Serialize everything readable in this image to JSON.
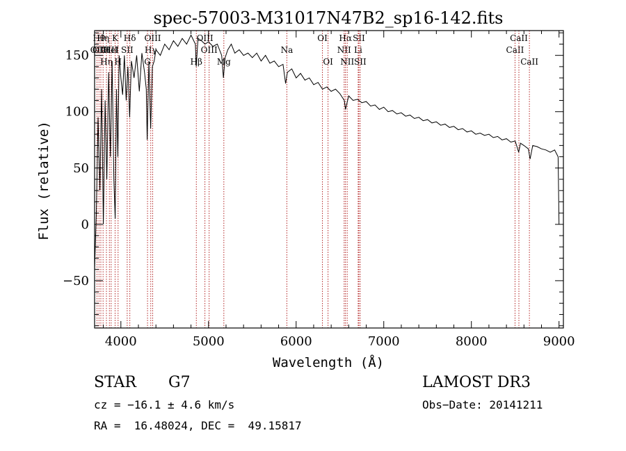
{
  "chart_data": {
    "type": "line",
    "title": "spec-57003-M31017N47B2_sp16-142.fits",
    "xlabel": "Wavelength (Å)",
    "ylabel": "Flux (relative)",
    "xlim": [
      3700,
      9050
    ],
    "ylim": [
      -92,
      172
    ],
    "x_ticks": [
      4000,
      5000,
      6000,
      7000,
      8000,
      9000
    ],
    "y_ticks": [
      -50,
      0,
      50,
      100,
      150
    ],
    "grid": false,
    "series": [
      {
        "name": "flux",
        "color": "#000000",
        "points": [
          [
            3700,
            -40
          ],
          [
            3720,
            10
          ],
          [
            3740,
            95
          ],
          [
            3760,
            30
          ],
          [
            3780,
            120
          ],
          [
            3800,
            0
          ],
          [
            3820,
            110
          ],
          [
            3840,
            40
          ],
          [
            3860,
            135
          ],
          [
            3880,
            60
          ],
          [
            3900,
            145
          ],
          [
            3920,
            40
          ],
          [
            3935,
            5
          ],
          [
            3950,
            120
          ],
          [
            3965,
            60
          ],
          [
            3980,
            150
          ],
          [
            4000,
            130
          ],
          [
            4020,
            115
          ],
          [
            4040,
            150
          ],
          [
            4060,
            110
          ],
          [
            4080,
            140
          ],
          [
            4100,
            95
          ],
          [
            4120,
            145
          ],
          [
            4150,
            130
          ],
          [
            4180,
            150
          ],
          [
            4210,
            118
          ],
          [
            4240,
            152
          ],
          [
            4270,
            135
          ],
          [
            4290,
            120
          ],
          [
            4300,
            75
          ],
          [
            4320,
            145
          ],
          [
            4340,
            85
          ],
          [
            4360,
            140
          ],
          [
            4380,
            145
          ],
          [
            4400,
            155
          ],
          [
            4450,
            150
          ],
          [
            4500,
            160
          ],
          [
            4550,
            155
          ],
          [
            4600,
            163
          ],
          [
            4650,
            158
          ],
          [
            4700,
            165
          ],
          [
            4750,
            160
          ],
          [
            4800,
            168
          ],
          [
            4850,
            160
          ],
          [
            4860,
            140
          ],
          [
            4880,
            165
          ],
          [
            4920,
            163
          ],
          [
            4960,
            160
          ],
          [
            5000,
            162
          ],
          [
            5050,
            158
          ],
          [
            5100,
            160
          ],
          [
            5150,
            150
          ],
          [
            5170,
            130
          ],
          [
            5190,
            148
          ],
          [
            5220,
            155
          ],
          [
            5260,
            160
          ],
          [
            5300,
            152
          ],
          [
            5350,
            155
          ],
          [
            5400,
            150
          ],
          [
            5450,
            152
          ],
          [
            5500,
            148
          ],
          [
            5550,
            152
          ],
          [
            5600,
            145
          ],
          [
            5650,
            150
          ],
          [
            5700,
            143
          ],
          [
            5750,
            145
          ],
          [
            5800,
            140
          ],
          [
            5850,
            142
          ],
          [
            5880,
            125
          ],
          [
            5900,
            135
          ],
          [
            5950,
            138
          ],
          [
            6000,
            130
          ],
          [
            6050,
            134
          ],
          [
            6100,
            128
          ],
          [
            6150,
            130
          ],
          [
            6200,
            124
          ],
          [
            6250,
            126
          ],
          [
            6300,
            120
          ],
          [
            6350,
            122
          ],
          [
            6400,
            118
          ],
          [
            6450,
            120
          ],
          [
            6500,
            116
          ],
          [
            6550,
            110
          ],
          [
            6563,
            102
          ],
          [
            6600,
            114
          ],
          [
            6650,
            110
          ],
          [
            6700,
            111
          ],
          [
            6750,
            108
          ],
          [
            6800,
            109
          ],
          [
            6850,
            105
          ],
          [
            6900,
            106
          ],
          [
            6950,
            102
          ],
          [
            7000,
            104
          ],
          [
            7050,
            100
          ],
          [
            7100,
            101
          ],
          [
            7150,
            98
          ],
          [
            7200,
            99
          ],
          [
            7250,
            96
          ],
          [
            7300,
            97
          ],
          [
            7350,
            94
          ],
          [
            7400,
            95
          ],
          [
            7450,
            92
          ],
          [
            7500,
            93
          ],
          [
            7550,
            90
          ],
          [
            7600,
            91
          ],
          [
            7650,
            88
          ],
          [
            7700,
            89
          ],
          [
            7750,
            86
          ],
          [
            7800,
            87
          ],
          [
            7850,
            84
          ],
          [
            7900,
            85
          ],
          [
            7950,
            82
          ],
          [
            8000,
            83
          ],
          [
            8050,
            80
          ],
          [
            8100,
            81
          ],
          [
            8150,
            79
          ],
          [
            8200,
            80
          ],
          [
            8250,
            77
          ],
          [
            8300,
            78
          ],
          [
            8350,
            75
          ],
          [
            8400,
            76
          ],
          [
            8450,
            73
          ],
          [
            8500,
            74
          ],
          [
            8540,
            64
          ],
          [
            8560,
            72
          ],
          [
            8600,
            70
          ],
          [
            8650,
            67
          ],
          [
            8670,
            58
          ],
          [
            8700,
            70
          ],
          [
            8750,
            69
          ],
          [
            8800,
            67
          ],
          [
            8850,
            66
          ],
          [
            8900,
            64
          ],
          [
            8950,
            66
          ],
          [
            8990,
            60
          ],
          [
            9000,
            0
          ]
        ]
      }
    ],
    "line_markers": [
      {
        "x": 3727,
        "label": "OII",
        "row": 2
      },
      {
        "x": 3750,
        "label": "Hθ",
        "row": 1
      },
      {
        "x": 3771,
        "label": "OIII",
        "row": 2
      },
      {
        "x": 3797,
        "label": "Hη",
        "row": 1
      },
      {
        "x": 3835,
        "label": "Hη",
        "row": 3
      },
      {
        "x": 3869,
        "label": "OIII",
        "row": 2
      },
      {
        "x": 3889,
        "label": "HeI",
        "row": 2
      },
      {
        "x": 3934,
        "label": "K",
        "row": 1
      },
      {
        "x": 3968,
        "label": "H",
        "row": 3
      },
      {
        "x": 4072,
        "label": "SII",
        "row": 2
      },
      {
        "x": 4102,
        "label": "Hδ",
        "row": 1
      },
      {
        "x": 4304,
        "label": "G",
        "row": 3
      },
      {
        "x": 4341,
        "label": "Hγ",
        "row": 2
      },
      {
        "x": 4363,
        "label": "OIII",
        "row": 1
      },
      {
        "x": 4861,
        "label": "Hβ",
        "row": 3
      },
      {
        "x": 4959,
        "label": "OIII",
        "row": 1
      },
      {
        "x": 5007,
        "label": "OIII",
        "row": 2
      },
      {
        "x": 5175,
        "label": "Mg",
        "row": 3
      },
      {
        "x": 5894,
        "label": "Na",
        "row": 2
      },
      {
        "x": 6300,
        "label": "OI",
        "row": 1
      },
      {
        "x": 6364,
        "label": "OI",
        "row": 3
      },
      {
        "x": 6548,
        "label": "NII",
        "row": 2
      },
      {
        "x": 6563,
        "label": "Hα",
        "row": 1
      },
      {
        "x": 6583,
        "label": "NII",
        "row": 3
      },
      {
        "x": 6708,
        "label": "Li",
        "row": 2
      },
      {
        "x": 6716,
        "label": "SII",
        "row": 1
      },
      {
        "x": 6731,
        "label": "SII",
        "row": 3
      },
      {
        "x": 8498,
        "label": "CaII",
        "row": 2
      },
      {
        "x": 8542,
        "label": "CaII",
        "row": 1
      },
      {
        "x": 8662,
        "label": "CaII",
        "row": 3
      }
    ]
  },
  "footer": {
    "class_label": "STAR",
    "subclass": "G7",
    "survey": "LAMOST DR3",
    "cz": "cz = −16.1 ± 4.6 km/s",
    "obs_date": "Obs−Date: 20141211",
    "coords": "RA =  16.48024, DEC =  49.15817"
  },
  "colors": {
    "line": "#000000",
    "marker": "#b22222"
  }
}
